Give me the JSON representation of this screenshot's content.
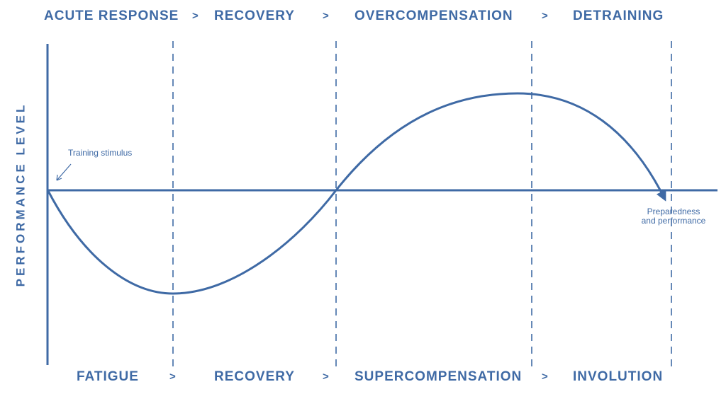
{
  "colors": {
    "accent": "#3f6aa5"
  },
  "top_phases": {
    "p1": "ACUTE RESPONSE",
    "p2": "RECOVERY",
    "p3": "OVERCOMPENSATION",
    "p4": "DETRAINING",
    "separator": ">"
  },
  "bottom_phases": {
    "p1": "FATIGUE",
    "p2": "RECOVERY",
    "p3": "SUPERCOMPENSATION",
    "p4": "INVOLUTION",
    "separator": ">"
  },
  "y_axis_label": "PERFORMANCE LEVEL",
  "annotations": {
    "stimulus": "Training stimulus",
    "preparedness_line1": "Preparedness",
    "preparedness_line2": "and performance"
  }
}
